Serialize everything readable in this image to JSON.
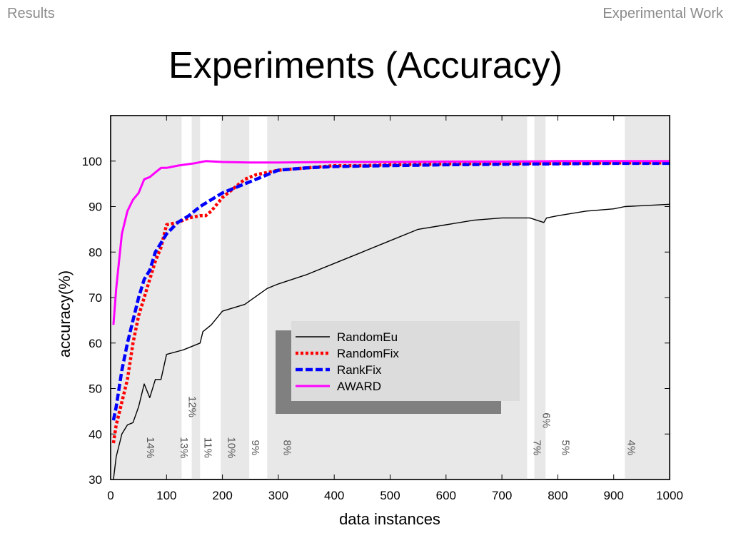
{
  "header": {
    "section": "Results",
    "deck": "Experimental Work"
  },
  "slide": {
    "title": "Experiments (Accuracy)"
  },
  "colors": {
    "shade": "#e8e8e8",
    "RandomEu": "#000000",
    "RandomFix": "#ff0000",
    "RankFix": "#0000ff",
    "AWARD": "#ff00ff"
  },
  "chart_data": {
    "type": "line",
    "xlabel": "data instances",
    "ylabel": "accuracy(%)",
    "xlim": [
      0,
      1000
    ],
    "ylim": [
      30,
      110
    ],
    "xticks": [
      0,
      100,
      200,
      300,
      400,
      500,
      600,
      700,
      800,
      900,
      1000
    ],
    "yticks": [
      30,
      40,
      50,
      60,
      70,
      80,
      90,
      100
    ],
    "legend_position": "center",
    "shaded_bands": [
      [
        0,
        127
      ],
      [
        145,
        160
      ],
      [
        197,
        248
      ],
      [
        280,
        745
      ],
      [
        758,
        778
      ],
      [
        920,
        1000
      ]
    ],
    "band_annotations": [
      {
        "text": "14%",
        "x": 65,
        "y": 37
      },
      {
        "text": "12%",
        "x": 140,
        "y": 46
      },
      {
        "text": "13%",
        "x": 125,
        "y": 37
      },
      {
        "text": "11%",
        "x": 168,
        "y": 37
      },
      {
        "text": "10%",
        "x": 210,
        "y": 37
      },
      {
        "text": "9%",
        "x": 253,
        "y": 37
      },
      {
        "text": "8%",
        "x": 310,
        "y": 37
      },
      {
        "text": "6%",
        "x": 773,
        "y": 43
      },
      {
        "text": "7%",
        "x": 757,
        "y": 37
      },
      {
        "text": "5%",
        "x": 808,
        "y": 37
      },
      {
        "text": "4%",
        "x": 925,
        "y": 37
      }
    ],
    "series": [
      {
        "name": "RandomEu",
        "style": "solid-thin",
        "x": [
          5,
          10,
          20,
          30,
          40,
          50,
          60,
          70,
          80,
          90,
          100,
          130,
          160,
          165,
          180,
          200,
          240,
          280,
          300,
          350,
          400,
          450,
          500,
          550,
          600,
          650,
          700,
          750,
          775,
          780,
          800,
          850,
          900,
          920,
          1000
        ],
        "y": [
          30,
          35,
          40,
          42,
          42.5,
          46,
          51,
          48,
          52,
          52,
          57.5,
          58.5,
          60,
          62.5,
          64,
          67,
          68.5,
          72,
          73,
          75,
          77.5,
          80,
          82.5,
          85,
          86,
          87,
          87.5,
          87.5,
          86.5,
          87.5,
          88,
          89,
          89.5,
          90,
          90.5
        ]
      },
      {
        "name": "RandomFix",
        "style": "dotted-thick",
        "x": [
          5,
          10,
          20,
          30,
          40,
          50,
          60,
          70,
          80,
          90,
          100,
          120,
          140,
          160,
          170,
          180,
          200,
          220,
          240,
          260,
          280,
          300,
          350,
          400,
          450,
          500,
          600,
          700,
          800,
          900,
          1000
        ],
        "y": [
          38,
          42,
          47,
          52,
          60,
          66,
          70,
          74,
          78,
          81,
          86,
          86.5,
          87.5,
          88,
          88,
          89,
          92,
          94,
          96,
          97,
          97.5,
          98,
          98.5,
          99,
          99,
          99.2,
          99.4,
          99.5,
          99.5,
          99.6,
          99.6
        ]
      },
      {
        "name": "RankFix",
        "style": "dashed-thick",
        "x": [
          5,
          10,
          20,
          30,
          40,
          50,
          60,
          70,
          80,
          90,
          100,
          120,
          140,
          160,
          180,
          200,
          220,
          240,
          260,
          280,
          300,
          350,
          400,
          500,
          600,
          700,
          800,
          900,
          1000
        ],
        "y": [
          43,
          46,
          54,
          60,
          65,
          70,
          74,
          76,
          80,
          82,
          84,
          86.5,
          88,
          90,
          91.5,
          93,
          94,
          95,
          96,
          97,
          98,
          98.5,
          98.8,
          99,
          99.2,
          99.3,
          99.4,
          99.5,
          99.5
        ]
      },
      {
        "name": "AWARD",
        "style": "solid-thick",
        "x": [
          5,
          10,
          20,
          30,
          40,
          50,
          60,
          70,
          80,
          90,
          100,
          120,
          150,
          170,
          200,
          250,
          300,
          400,
          500,
          600,
          700,
          800,
          900,
          1000
        ],
        "y": [
          64,
          72,
          84,
          89,
          91.5,
          93,
          96,
          96.5,
          97.5,
          98.5,
          98.5,
          99,
          99.5,
          100,
          99.8,
          99.7,
          99.7,
          99.8,
          99.8,
          99.9,
          99.9,
          100,
          100,
          100
        ]
      }
    ]
  }
}
